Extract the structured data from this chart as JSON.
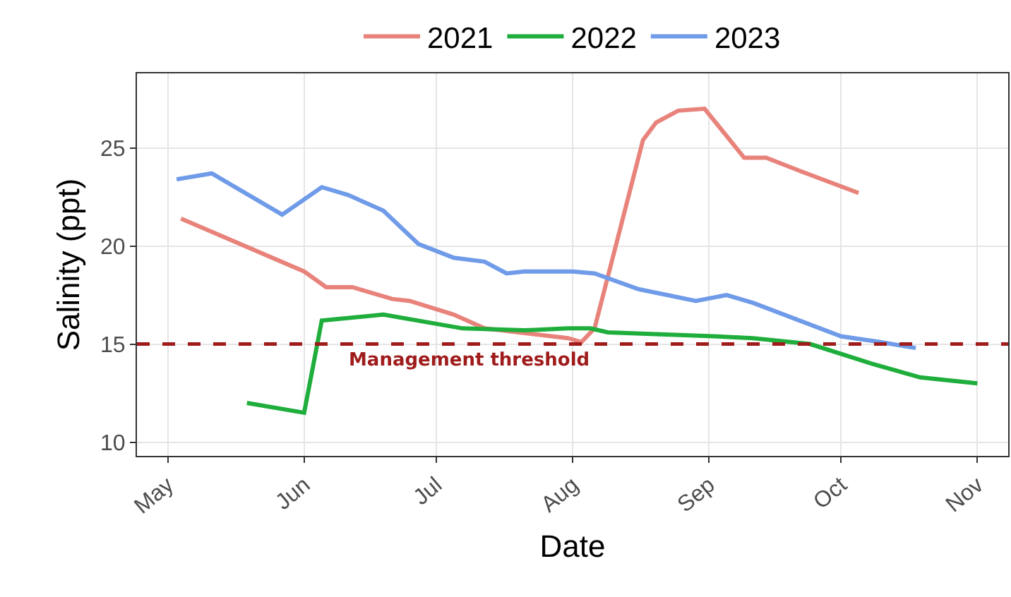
{
  "chart_data": {
    "type": "line",
    "xlabel": "Date",
    "ylabel": "Salinity (ppt)",
    "xlim": [
      "--04-24",
      "--11-08"
    ],
    "xticks": [
      {
        "value": "--05-01",
        "label": "May"
      },
      {
        "value": "--06-01",
        "label": "Jun"
      },
      {
        "value": "--07-01",
        "label": "Jul"
      },
      {
        "value": "--08-01",
        "label": "Aug"
      },
      {
        "value": "--09-01",
        "label": "Sep"
      },
      {
        "value": "--10-01",
        "label": "Oct"
      },
      {
        "value": "--11-01",
        "label": "Nov"
      }
    ],
    "ylim": [
      9.3,
      28.8
    ],
    "yticks": [
      10,
      15,
      20,
      25
    ],
    "grid": true,
    "legend": "top",
    "line_style": "solid",
    "marker": "none",
    "series": [
      {
        "name": "2021",
        "color": "#e8837b",
        "x": [
          "--05-04",
          "--06-01",
          "--06-06",
          "--06-12",
          "--06-21",
          "--06-25",
          "--07-05",
          "--07-12",
          "--07-31",
          "--08-03",
          "--08-06",
          "--08-17",
          "--08-20",
          "--08-25",
          "--08-31",
          "--09-09",
          "--09-14",
          "--09-22",
          "--10-05"
        ],
        "values": [
          21.4,
          18.7,
          17.9,
          17.9,
          17.3,
          17.2,
          16.5,
          15.8,
          15.3,
          15.1,
          15.8,
          25.4,
          26.3,
          26.9,
          27.0,
          24.5,
          24.5,
          23.8,
          22.7
        ]
      },
      {
        "name": "2022",
        "color": "#1fae3c",
        "x": [
          "--05-19",
          "--06-01",
          "--06-05",
          "--06-19",
          "--07-07",
          "--07-21",
          "--07-31",
          "--08-05",
          "--08-09",
          "--09-02",
          "--09-11",
          "--09-24",
          "--10-08",
          "--10-19",
          "--11-01"
        ],
        "values": [
          12.0,
          11.5,
          16.2,
          16.5,
          15.8,
          15.7,
          15.8,
          15.8,
          15.6,
          15.4,
          15.3,
          15.0,
          14.0,
          13.3,
          13.0
        ]
      },
      {
        "name": "2023",
        "color": "#6f9be8",
        "x": [
          "--05-03",
          "--05-11",
          "--05-27",
          "--06-05",
          "--06-11",
          "--06-19",
          "--06-27",
          "--07-05",
          "--07-12",
          "--07-17",
          "--07-21",
          "--08-01",
          "--08-06",
          "--08-16",
          "--08-29",
          "--09-05",
          "--09-11",
          "--10-01",
          "--10-10",
          "--10-18"
        ],
        "values": [
          23.4,
          23.7,
          21.6,
          23.0,
          22.6,
          21.8,
          20.1,
          19.4,
          19.2,
          18.6,
          18.7,
          18.7,
          18.6,
          17.8,
          17.2,
          17.5,
          17.1,
          15.4,
          15.1,
          14.8
        ]
      }
    ],
    "ref_lines": [
      {
        "axis": "y",
        "value": 15,
        "label": "Management threshold",
        "color": "#a01c1c",
        "line_style": "dashed"
      }
    ]
  }
}
